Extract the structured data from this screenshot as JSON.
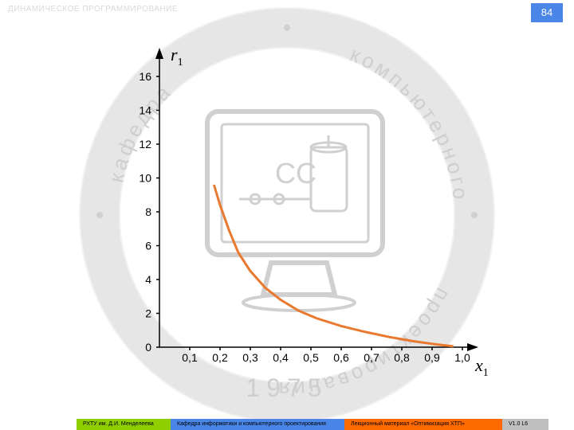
{
  "header": {
    "title": "ДИНАМИЧЕСКОЕ ПРОГРАММИРОВАНИЕ",
    "page_number": "84"
  },
  "watermark": {
    "ring_text_top": "компьютерного",
    "ring_text_right": "проектирования",
    "ring_text_left": "кафедра",
    "year": "1975",
    "center_label": "CC",
    "ring_color": "#dcdcdc",
    "text_color": "#cfcfcf",
    "monitor_color": "#d0d0d0"
  },
  "chart": {
    "type": "line",
    "y_axis_label": "r",
    "y_axis_sub": "1",
    "x_axis_label": "x",
    "x_axis_sub": "1",
    "x_ticks": [
      "0,1",
      "0,2",
      "0,3",
      "0,4",
      "0,5",
      "0,6",
      "0,7",
      "0,8",
      "0,9",
      "1,0"
    ],
    "y_ticks": [
      "0",
      "2",
      "4",
      "6",
      "8",
      "10",
      "12",
      "14",
      "16"
    ],
    "xlim": [
      0,
      1.0
    ],
    "ylim": [
      0,
      16
    ],
    "curve_color": "#e8792f",
    "curve_points": [
      {
        "x": 0.18,
        "y": 9.6
      },
      {
        "x": 0.2,
        "y": 8.4
      },
      {
        "x": 0.23,
        "y": 6.9
      },
      {
        "x": 0.26,
        "y": 5.6
      },
      {
        "x": 0.3,
        "y": 4.5
      },
      {
        "x": 0.35,
        "y": 3.5
      },
      {
        "x": 0.4,
        "y": 2.8
      },
      {
        "x": 0.46,
        "y": 2.15
      },
      {
        "x": 0.52,
        "y": 1.7
      },
      {
        "x": 0.6,
        "y": 1.25
      },
      {
        "x": 0.68,
        "y": 0.9
      },
      {
        "x": 0.76,
        "y": 0.6
      },
      {
        "x": 0.84,
        "y": 0.35
      },
      {
        "x": 0.92,
        "y": 0.15
      },
      {
        "x": 0.97,
        "y": 0.05
      }
    ],
    "axis_color": "#000000",
    "background_color": "#ffffff"
  },
  "footer": {
    "green": {
      "bg": "#8fce00",
      "text": "РХТУ им. Д.И. Менделеева"
    },
    "blue": {
      "bg": "#4a86e8",
      "text": "Кафедра информатики и компьютерного проектирования"
    },
    "orange": {
      "bg": "#ff6a00",
      "text": "Лекционный материал «Оптимизация ХТП»"
    },
    "gray": {
      "bg": "#c0c0c0",
      "text": "V1.0  L6"
    }
  }
}
